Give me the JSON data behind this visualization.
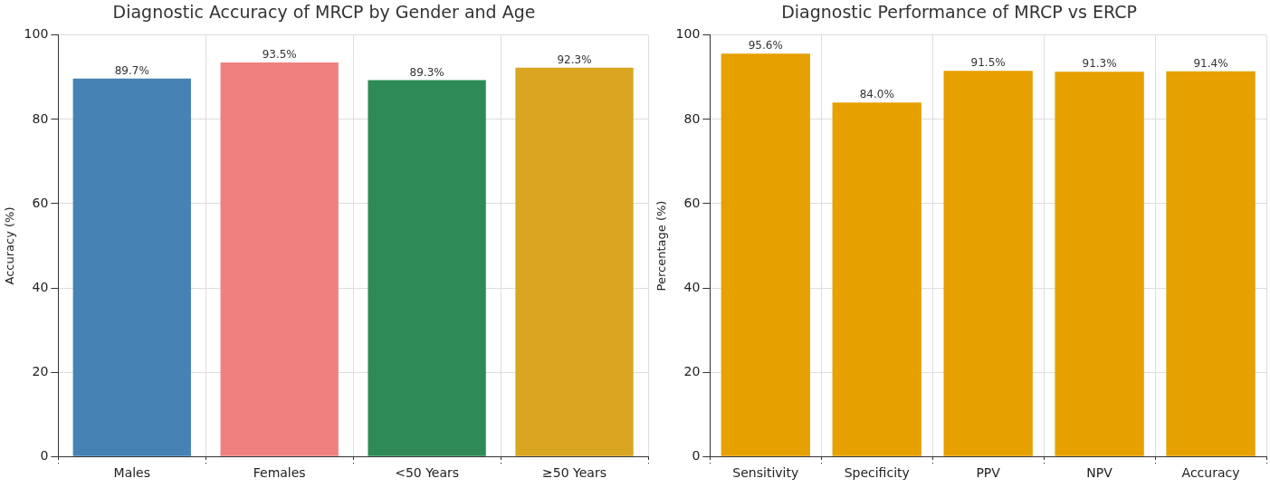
{
  "chart_data": [
    {
      "type": "bar",
      "title": "Diagnostic Accuracy of MRCP by Gender and Age",
      "ylabel": "Accuracy (%)",
      "categories": [
        "Males",
        "Females",
        "<50 Years",
        "≥50 Years"
      ],
      "values": [
        89.7,
        93.5,
        89.3,
        92.3
      ],
      "colors": [
        "#4682b4",
        "#f08080",
        "#2e8b57",
        "#daa520"
      ],
      "value_labels": [
        "89.7%",
        "93.5%",
        "89.3%",
        "92.3%"
      ],
      "ylim": [
        0,
        100
      ],
      "yticks": [
        0,
        20,
        40,
        60,
        80,
        100
      ],
      "grid": true,
      "legend": false
    },
    {
      "type": "bar",
      "title": "Diagnostic Performance of MRCP vs ERCP",
      "ylabel": "Percentage (%)",
      "categories": [
        "Sensitivity",
        "Specificity",
        "PPV",
        "NPV",
        "Accuracy"
      ],
      "values": [
        95.6,
        84.0,
        91.5,
        91.3,
        91.4
      ],
      "color": "#e6a000",
      "value_labels": [
        "95.6%",
        "84.0%",
        "91.5%",
        "91.3%",
        "91.4%"
      ],
      "ylim": [
        0,
        100
      ],
      "yticks": [
        0,
        20,
        40,
        60,
        80,
        100
      ],
      "grid": true,
      "legend": false
    }
  ]
}
